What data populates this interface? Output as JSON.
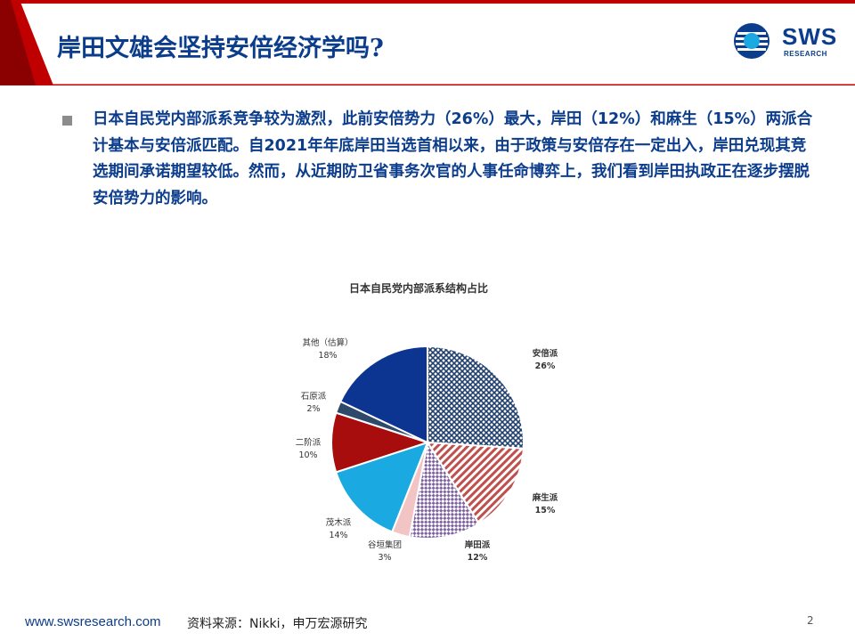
{
  "header": {
    "title": "岸田文雄会坚持安倍经济学吗?",
    "logo_text": "SWS",
    "logo_sub": "RESEARCH"
  },
  "body": {
    "paragraph": "日本自民党内部派系竞争较为激烈，此前安倍势力（26%）最大，岸田（12%）和麻生（15%）两派合计基本与安倍派匹配。自2021年年底岸田当选首相以来，由于政策与安倍存在一定出入，岸田兑现其竞选期间承诺期望较低。然而，从近期防卫省事务次官的人事任命博弈上，我们看到岸田执政正在逐步摆脱安倍势力的影响。"
  },
  "chart_data": {
    "type": "pie",
    "title": "日本自民党内部派系结构占比",
    "start": "12 o'clock, clockwise",
    "slices": [
      {
        "name": "安倍派",
        "value": 26,
        "label": "26%",
        "color": "#1f3f6e",
        "pattern": "diag-check",
        "bold": true
      },
      {
        "name": "麻生派",
        "value": 15,
        "label": "15%",
        "color": "#c0504d",
        "pattern": "diag-stripe",
        "bold": true
      },
      {
        "name": "岸田派",
        "value": 12,
        "label": "12%",
        "color": "#8064a2",
        "pattern": "check",
        "bold": true
      },
      {
        "name": "谷垣集团",
        "value": 3,
        "label": "3%",
        "color": "#f2c4c4",
        "pattern": "solid",
        "bold": false
      },
      {
        "name": "茂木派",
        "value": 14,
        "label": "14%",
        "color": "#1aa9e0",
        "pattern": "solid",
        "bold": false
      },
      {
        "name": "二阶派",
        "value": 10,
        "label": "10%",
        "color": "#a80d0d",
        "pattern": "solid",
        "bold": false
      },
      {
        "name": "石原派",
        "value": 2,
        "label": "2%",
        "color": "#2e4a6b",
        "pattern": "solid",
        "bold": false
      },
      {
        "name": "其他（估算）",
        "value": 18,
        "label": "18%",
        "color": "#0b3590",
        "pattern": "solid",
        "bold": false
      }
    ]
  },
  "footer": {
    "url": "www.swsresearch.com",
    "source": "资料来源：Nikki，申万宏源研究",
    "page": "2"
  }
}
